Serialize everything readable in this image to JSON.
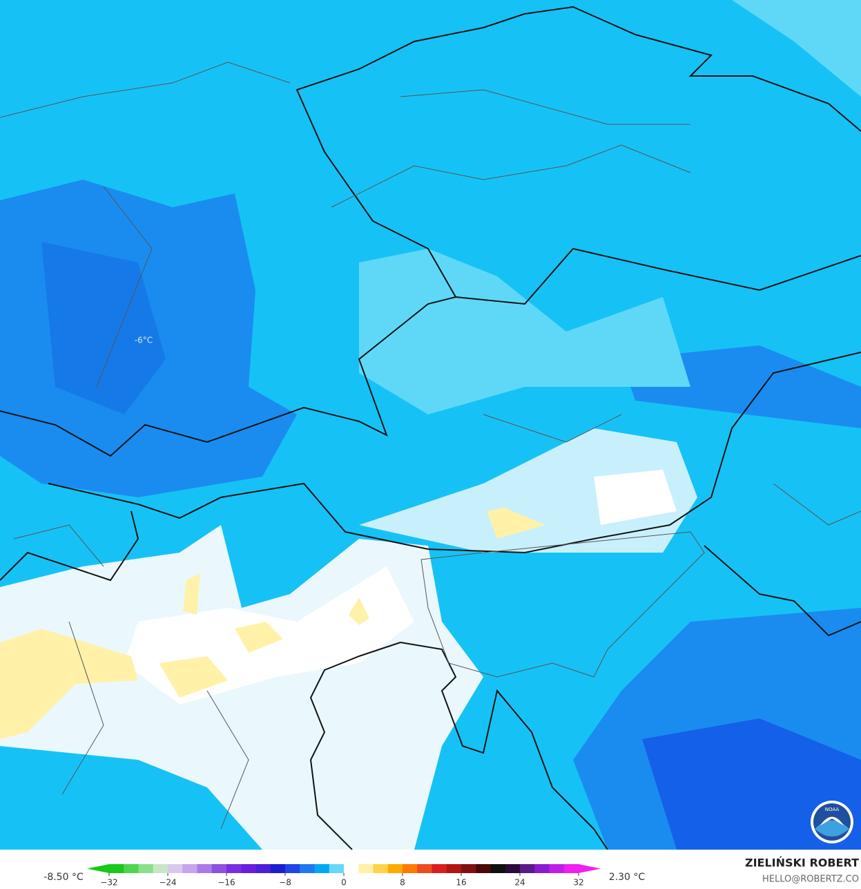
{
  "map": {
    "annotations": [
      {
        "label": "-6°C"
      }
    ],
    "logo": "NOAA"
  },
  "colorbar": {
    "min_label": "-8.50 °C",
    "max_label": "2.30 °C",
    "ticks": [
      {
        "value": -32,
        "label": "−32"
      },
      {
        "value": -24,
        "label": "−24"
      },
      {
        "value": -16,
        "label": "−16"
      },
      {
        "value": -8,
        "label": "−8"
      },
      0,
      8,
      16,
      24,
      32
    ],
    "colors": [
      "#19c819",
      "#4fd44f",
      "#8ae08a",
      "#c8e6c8",
      "#d9c8ee",
      "#c4a6ec",
      "#a97ae8",
      "#8f4fe0",
      "#7a2ee0",
      "#6a1de0",
      "#4b1ed8",
      "#1e1ecf",
      "#1e46e6",
      "#1e78f0",
      "#00a8f5",
      "#66d8fa",
      "#ffffff",
      "#fff1a8",
      "#ffd24a",
      "#ffaa00",
      "#ff7a00",
      "#f04a1e",
      "#d81e1e",
      "#b01414",
      "#801010",
      "#4a0808",
      "#101010",
      "#2a0a3a",
      "#5a1a8a",
      "#8a1ad0",
      "#c01ee8",
      "#f01ef0"
    ]
  },
  "credit": {
    "name": "ZIELIŃSKI ROBERT",
    "contact": "HELLO@ROBERTZ.CO"
  }
}
